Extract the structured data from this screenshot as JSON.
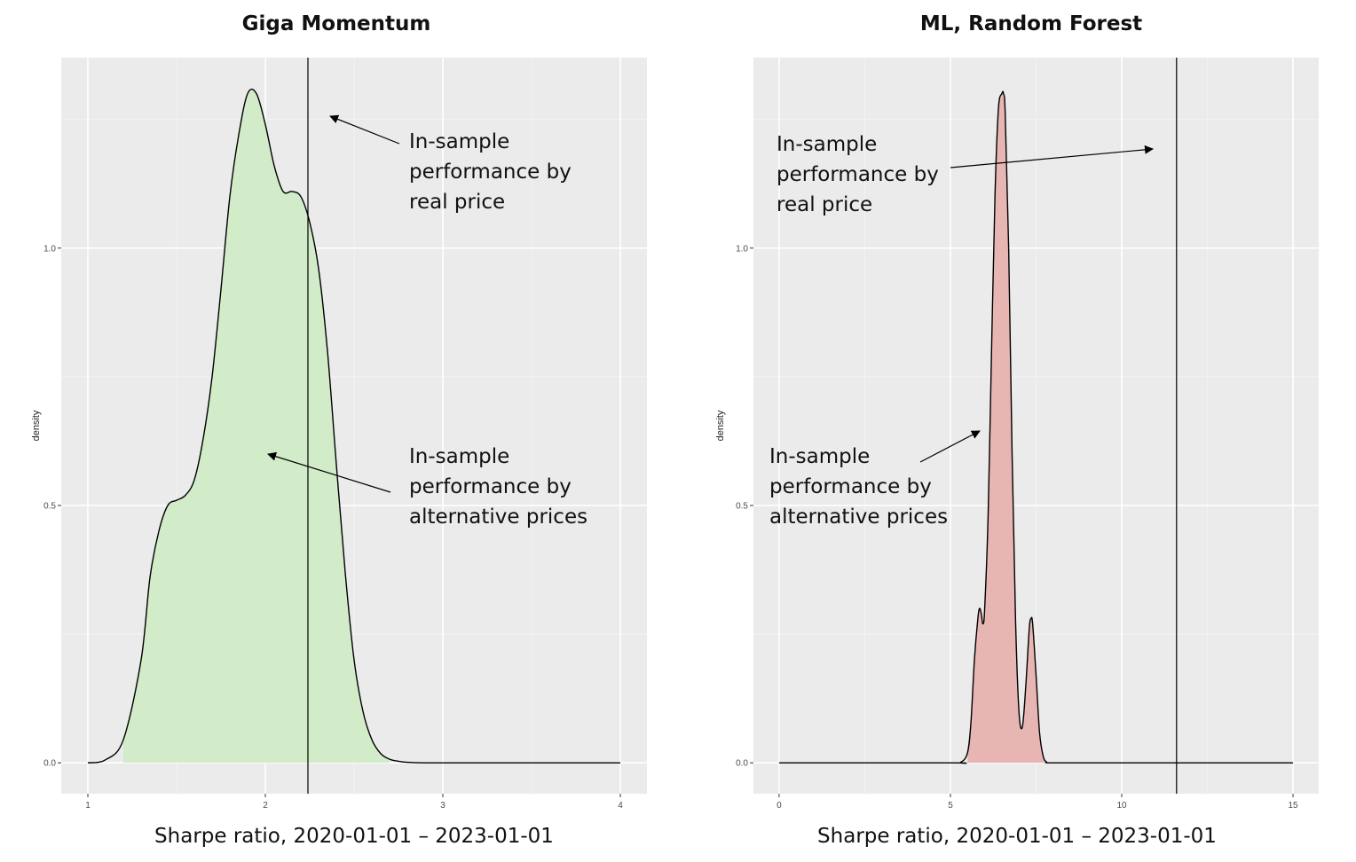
{
  "chart_data": [
    {
      "type": "area",
      "title": "Giga Momentum",
      "xlabel": "Sharpe ratio, 2020-01-01 – 2023-01-01",
      "ylabel": "density",
      "xlim": [
        0.85,
        4.15
      ],
      "ylim": [
        -0.06,
        1.37
      ],
      "x_ticks": [
        1,
        2,
        3,
        4
      ],
      "x_tick_labels": [
        "1",
        "2",
        "3",
        "4"
      ],
      "y_ticks": [
        0.0,
        0.5,
        1.0
      ],
      "y_tick_labels": [
        "0.0",
        "0.5",
        "1.0"
      ],
      "grid": true,
      "fill_color": "#d2ecca",
      "fill_range": [
        1.15,
        2.7
      ],
      "vline_x": 2.24,
      "series": [
        {
          "x": [
            1.0,
            1.1,
            1.2,
            1.3,
            1.35,
            1.4,
            1.45,
            1.5,
            1.55,
            1.6,
            1.65,
            1.7,
            1.75,
            1.8,
            1.85,
            1.9,
            1.95,
            2.0,
            2.05,
            2.1,
            2.15,
            2.2,
            2.25,
            2.3,
            2.35,
            2.4,
            2.45,
            2.5,
            2.55,
            2.6,
            2.65,
            2.7,
            2.75,
            2.8,
            2.9,
            3.0,
            3.5,
            4.0
          ],
          "y": [
            0.0,
            0.006,
            0.045,
            0.2,
            0.36,
            0.45,
            0.5,
            0.51,
            0.52,
            0.55,
            0.63,
            0.75,
            0.92,
            1.1,
            1.22,
            1.3,
            1.3,
            1.24,
            1.16,
            1.11,
            1.11,
            1.1,
            1.05,
            0.96,
            0.8,
            0.58,
            0.37,
            0.2,
            0.1,
            0.045,
            0.018,
            0.007,
            0.003,
            0.001,
            0.0,
            0.0,
            0.0,
            0.0
          ]
        }
      ],
      "annotations": [
        {
          "lines": [
            "In-sample",
            "performance by",
            "real price"
          ]
        },
        {
          "lines": [
            "In-sample",
            "performance by",
            "alternative prices"
          ]
        }
      ]
    },
    {
      "type": "area",
      "title": "ML, Random Forest",
      "xlabel": "Sharpe ratio, 2020-01-01 – 2023-01-01",
      "ylabel": "density",
      "xlim": [
        -0.75,
        15.75
      ],
      "ylim": [
        -0.06,
        1.37
      ],
      "x_ticks": [
        0,
        5,
        10,
        15
      ],
      "x_tick_labels": [
        "0",
        "5",
        "10",
        "15"
      ],
      "y_ticks": [
        0.0,
        0.5,
        1.0
      ],
      "y_tick_labels": [
        "0.0",
        "0.5",
        "1.0"
      ],
      "grid": true,
      "fill_color": "#e7b5b2",
      "fill_range": [
        5.4,
        7.85
      ],
      "vline_x": 11.6,
      "series": [
        {
          "x": [
            0.0,
            5.0,
            5.3,
            5.5,
            5.6,
            5.7,
            5.8,
            5.85,
            5.9,
            5.95,
            6.0,
            6.1,
            6.2,
            6.3,
            6.4,
            6.5,
            6.55,
            6.6,
            6.7,
            6.8,
            6.9,
            7.0,
            7.1,
            7.2,
            7.3,
            7.35,
            7.4,
            7.5,
            7.6,
            7.7,
            7.8,
            8.0,
            10.0,
            15.0
          ],
          "y": [
            0.0,
            0.0,
            0.001,
            0.02,
            0.08,
            0.2,
            0.28,
            0.3,
            0.29,
            0.27,
            0.3,
            0.48,
            0.8,
            1.1,
            1.27,
            1.3,
            1.3,
            1.26,
            1.0,
            0.6,
            0.28,
            0.1,
            0.07,
            0.15,
            0.26,
            0.28,
            0.27,
            0.17,
            0.06,
            0.015,
            0.002,
            0.0,
            0.0,
            0.0
          ]
        }
      ],
      "annotations": [
        {
          "lines": [
            "In-sample",
            "performance by",
            "real price"
          ]
        },
        {
          "lines": [
            "In-sample",
            "performance by",
            "alternative prices"
          ]
        }
      ]
    }
  ]
}
